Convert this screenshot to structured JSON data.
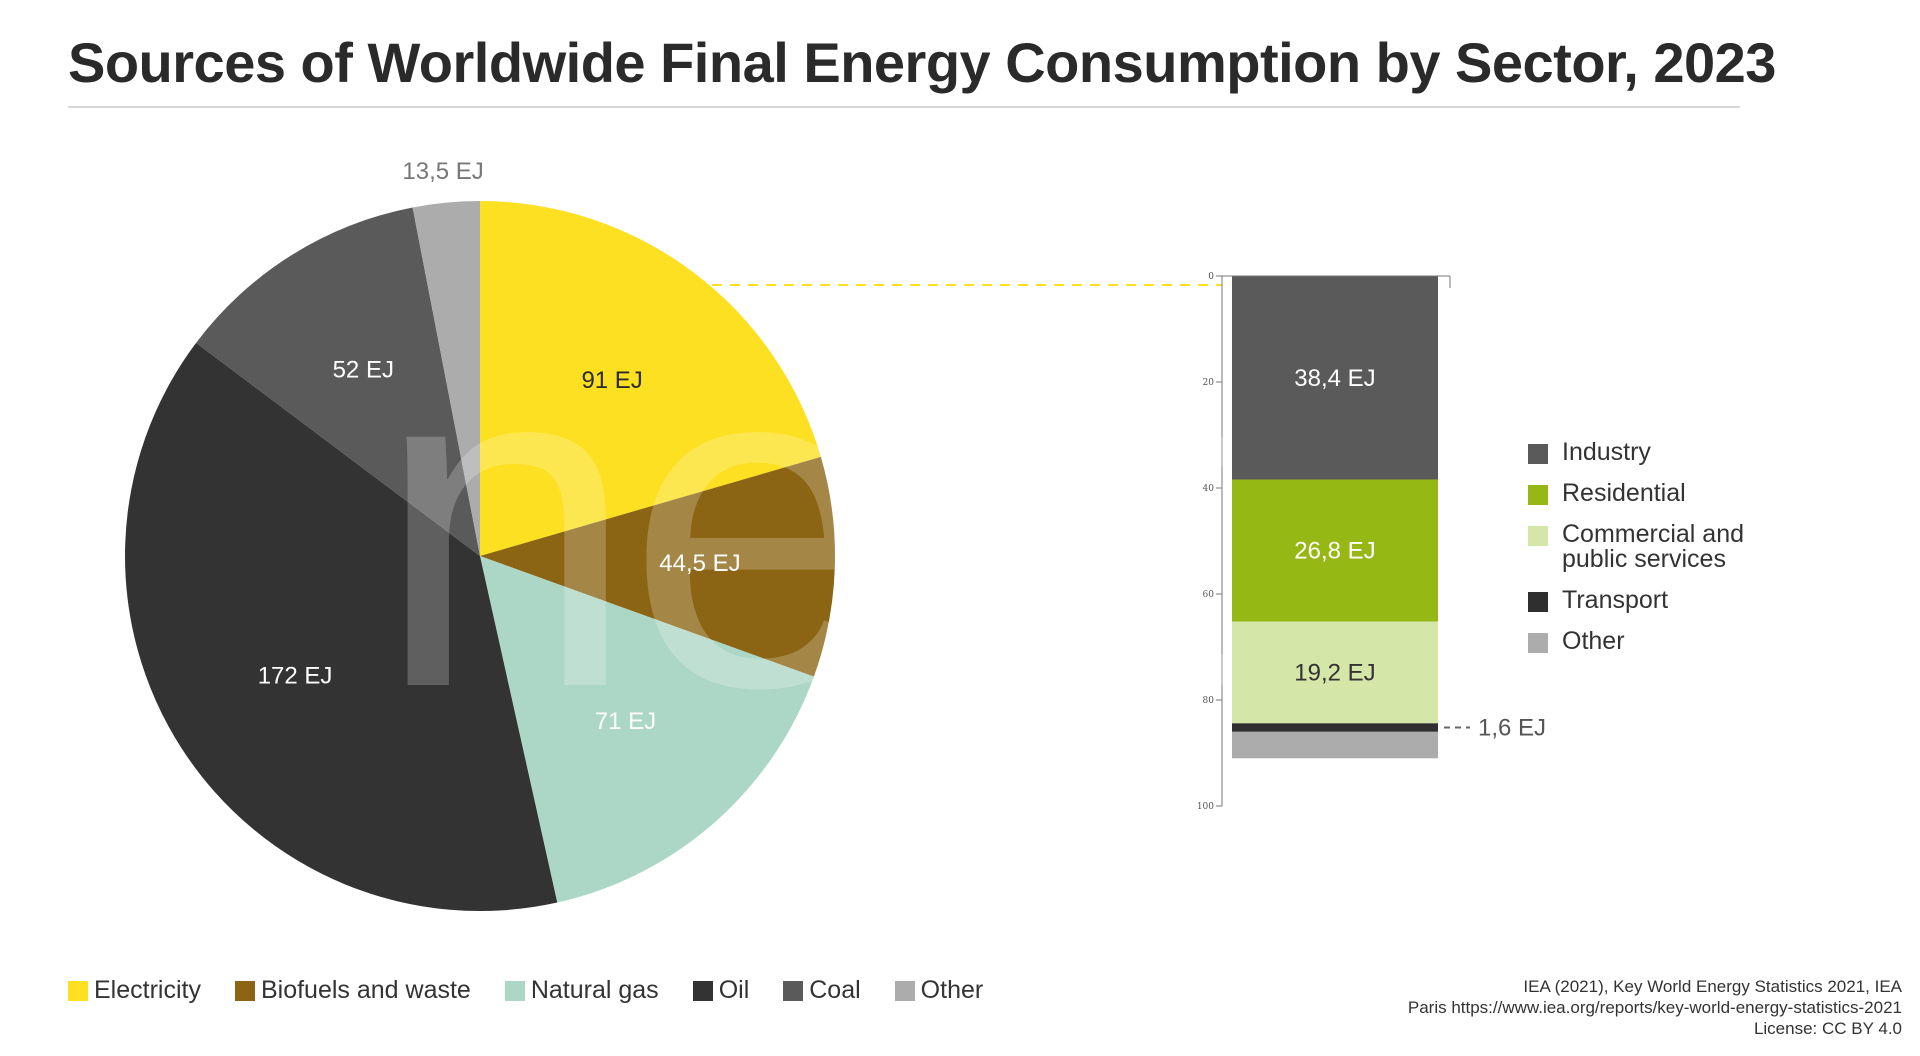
{
  "title": "Sources of Worldwide Final Energy Consumption by Sector, 2023",
  "chart_data": [
    {
      "type": "pie",
      "title": "",
      "categories": [
        "Electricity",
        "Biofuels and waste",
        "Natural gas",
        "Oil",
        "Coal",
        "Other"
      ],
      "values": [
        91,
        44.5,
        71,
        172,
        52,
        13.5
      ],
      "unit": "EJ",
      "data_labels": [
        "91 EJ",
        "44,5 EJ",
        "71 EJ",
        "172 EJ",
        "52 EJ",
        "13,5 EJ"
      ],
      "colors": [
        "#fde021",
        "#8b6514",
        "#acd6c6",
        "#333333",
        "#5a5a5a",
        "#acacac"
      ],
      "legend_position": "bottom-left"
    },
    {
      "type": "bar",
      "stacked": true,
      "description_of_link": "breakdown of Electricity slice",
      "categories": [
        "Electricity"
      ],
      "series": [
        {
          "name": "Industry",
          "values": [
            38.4
          ],
          "label": "38,4 EJ",
          "color": "#5a5a5a"
        },
        {
          "name": "Residential",
          "values": [
            26.8
          ],
          "label": "26,8 EJ",
          "color": "#95b815"
        },
        {
          "name": "Commercial and public services",
          "values": [
            19.2
          ],
          "label": "19,2 EJ",
          "color": "#d5e6a9"
        },
        {
          "name": "Transport",
          "values": [
            1.6
          ],
          "label": "1,6 EJ",
          "color": "#2f2f2f"
        },
        {
          "name": "Other",
          "values": [
            5.0
          ],
          "label": "",
          "color": "#acacac"
        }
      ],
      "ylim": [
        0,
        100
      ],
      "yticks": [
        "0",
        "20",
        "40",
        "60",
        "80",
        "100"
      ],
      "legend_position": "right"
    }
  ],
  "legend": [
    {
      "label": "Electricity",
      "color": "#fde021"
    },
    {
      "label": "Biofuels and waste",
      "color": "#8b6514"
    },
    {
      "label": "Natural gas",
      "color": "#acd6c6"
    },
    {
      "label": "Oil",
      "color": "#333333"
    },
    {
      "label": "Coal",
      "color": "#5a5a5a"
    },
    {
      "label": "Other",
      "color": "#acacac"
    }
  ],
  "sector_legend": [
    {
      "label": "Industry",
      "color": "#5a5a5a"
    },
    {
      "label": "Residential",
      "color": "#95b815"
    },
    {
      "label": "Commercial and public services",
      "color": "#d5e6a9"
    },
    {
      "label": "Transport",
      "color": "#2f2f2f"
    },
    {
      "label": "Other",
      "color": "#acacac"
    }
  ],
  "source": {
    "line1": "IEA (2021), Key World Energy Statistics 2021, IEA",
    "line2": "Paris https://www.iea.org/reports/key-world-energy-statistics-2021",
    "line3": "License: CC BY 4.0"
  },
  "watermark": "next"
}
